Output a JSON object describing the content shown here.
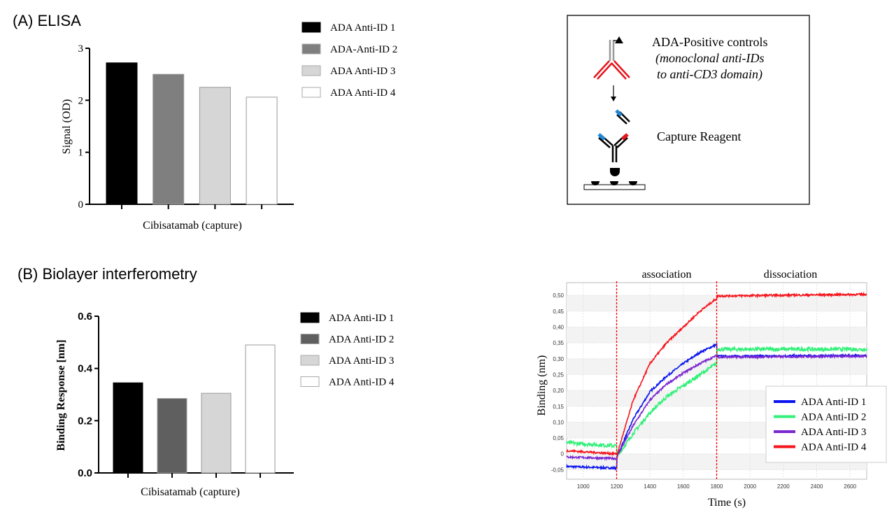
{
  "panel_a_title": "(A) ELISA",
  "panel_b_title": "(B) Biolayer interferometry",
  "diagram": {
    "positive_controls_label": "ADA-Positive controls",
    "positive_controls_note_1": "(monoclonal anti-IDs",
    "positive_controls_note_2": "to anti-CD3 domain)",
    "capture_label": "Capture Reagent",
    "colors": {
      "anti_id_arms": "#e8141c",
      "capture_blue": "#1e88d6",
      "capture_red": "#e8141c"
    }
  },
  "chart_data": [
    {
      "type": "bar",
      "categories": [
        "ADA Anti-ID 1",
        "ADA-Anti-ID 2",
        "ADA Anti-ID 3",
        "ADA Anti-ID 4"
      ],
      "values": [
        2.72,
        2.5,
        2.25,
        2.06
      ],
      "colors": [
        "#000000",
        "#7f7f7f",
        "#d6d6d6",
        "#ffffff"
      ],
      "xlabel": "Cibisatamab (capture)",
      "ylabel": "Signal (OD)",
      "ylim": [
        0,
        3
      ],
      "yticks": [
        "0",
        "1",
        "2",
        "3"
      ],
      "legend": "right"
    },
    {
      "type": "bar",
      "categories": [
        "ADA Anti-ID 1",
        "ADA Anti-ID 2",
        "ADA Anti-ID 3",
        "ADA Anti-ID 4"
      ],
      "values": [
        0.345,
        0.285,
        0.305,
        0.49
      ],
      "colors": [
        "#000000",
        "#5f5f5f",
        "#d6d6d6",
        "#ffffff"
      ],
      "xlabel": "Cibisatamab (capture)",
      "ylabel": "Binding Response [nm]",
      "ylim": [
        0,
        0.6
      ],
      "yticks": [
        "0.0",
        "0.2",
        "0.4",
        "0.6"
      ],
      "legend": "right"
    },
    {
      "type": "line",
      "xlabel": "Time (s)",
      "ylabel": "Binding (nm)",
      "xlim": [
        900,
        2700
      ],
      "ylim": [
        -0.08,
        0.54
      ],
      "xticks": [
        "1000",
        "1200",
        "1400",
        "1600",
        "1800",
        "2000",
        "2200",
        "2400",
        "2600"
      ],
      "yticks": [
        "-0,05",
        "0",
        "0,05",
        "0,10",
        "0,15",
        "0,20",
        "0,25",
        "0,30",
        "0,35",
        "0,40",
        "0,45",
        "0,50"
      ],
      "phase_labels": [
        "association",
        "dissociation"
      ],
      "phase_boundaries": [
        1200,
        1800
      ],
      "grid": true,
      "legend": "bottom-right",
      "series": [
        {
          "name": "ADA Anti-ID 1",
          "color": "#0a14f0",
          "x": [
            900,
            1200,
            1201,
            1300,
            1400,
            1500,
            1600,
            1700,
            1800,
            1801,
            2700
          ],
          "y": [
            -0.04,
            -0.045,
            -0.01,
            0.11,
            0.196,
            0.245,
            0.285,
            0.32,
            0.345,
            0.308,
            0.31
          ]
        },
        {
          "name": "ADA Anti-ID 2",
          "color": "#33f07a",
          "x": [
            900,
            1200,
            1201,
            1300,
            1400,
            1500,
            1600,
            1700,
            1800,
            1801,
            2700
          ],
          "y": [
            0.035,
            0.025,
            -0.01,
            0.065,
            0.13,
            0.18,
            0.215,
            0.25,
            0.285,
            0.33,
            0.33
          ]
        },
        {
          "name": "ADA Anti-ID 3",
          "color": "#7a28d0",
          "x": [
            900,
            1200,
            1201,
            1300,
            1400,
            1500,
            1600,
            1700,
            1800,
            1801,
            2700
          ],
          "y": [
            -0.01,
            -0.015,
            -0.01,
            0.09,
            0.17,
            0.22,
            0.255,
            0.285,
            0.31,
            0.305,
            0.308
          ]
        },
        {
          "name": "ADA Anti-ID 4",
          "color": "#f5141c",
          "x": [
            900,
            1200,
            1201,
            1300,
            1400,
            1500,
            1600,
            1700,
            1800,
            1801,
            2700
          ],
          "y": [
            0.01,
            0.0,
            -0.005,
            0.17,
            0.285,
            0.35,
            0.4,
            0.45,
            0.49,
            0.498,
            0.503
          ]
        }
      ]
    }
  ]
}
